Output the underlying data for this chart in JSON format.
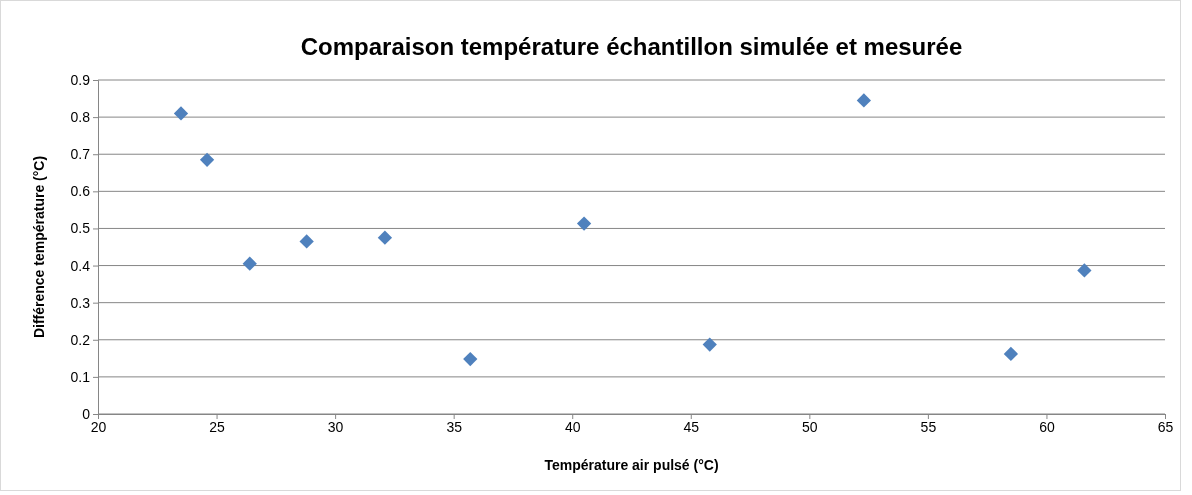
{
  "chart_data": {
    "type": "scatter",
    "title": "Comparaison température échantillon simulée et mesurée",
    "xlabel": "Température air pulsé (°C)",
    "ylabel": "Différence température (°C)",
    "x": [
      23.5,
      24.6,
      26.4,
      28.8,
      32.1,
      35.7,
      40.5,
      45.8,
      52.3,
      58.5,
      61.6
    ],
    "series": [
      {
        "color": "#4f81bd",
        "values": [
          0.81,
          0.685,
          0.405,
          0.465,
          0.475,
          0.148,
          0.513,
          0.187,
          0.845,
          0.162,
          0.387
        ]
      }
    ],
    "xlim": [
      20,
      65
    ],
    "xticks": [
      20,
      25,
      30,
      35,
      40,
      45,
      50,
      55,
      60,
      65
    ],
    "ylim": [
      0,
      0.9
    ],
    "yticks": [
      0,
      0.1,
      0.2,
      0.3,
      0.4,
      0.5,
      0.6,
      0.7,
      0.8,
      0.9
    ],
    "grid": "y",
    "marker": "diamond"
  }
}
